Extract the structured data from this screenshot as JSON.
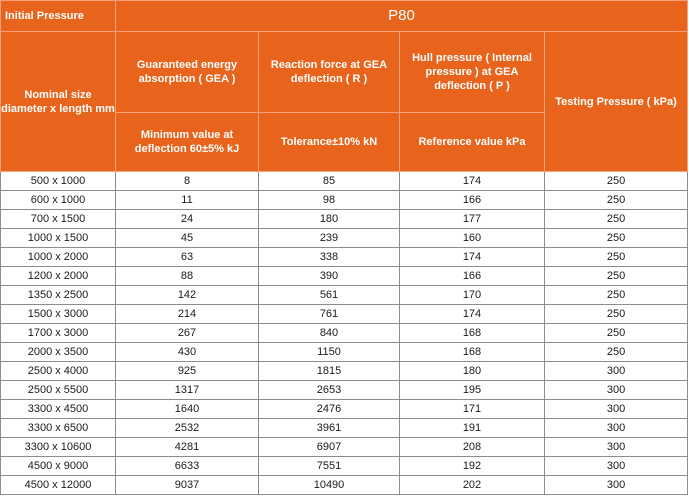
{
  "header": {
    "initial_pressure": "Initial Pressure",
    "group": "P80",
    "nominal_size": "Nominal size diameter x length mm",
    "gea": "Guaranteed energy absorption ( GEA )",
    "reaction": "Reaction force at GEA deflection ( R )",
    "hull": "Hull pressure ( Internal pressure ) at GEA deflection ( P )",
    "testing": "Testing Pressure ( kPa)",
    "gea_sub": "Minimum value at deflection 60±5% kJ",
    "reaction_sub": "Tolerance±10% kN",
    "hull_sub": "Reference value kPa"
  },
  "rows": [
    {
      "size": "500 x 1000",
      "gea": "8",
      "reaction": "85",
      "hull": "174",
      "testing": "250"
    },
    {
      "size": "600 x 1000",
      "gea": "11",
      "reaction": "98",
      "hull": "166",
      "testing": "250"
    },
    {
      "size": "700 x 1500",
      "gea": "24",
      "reaction": "180",
      "hull": "177",
      "testing": "250"
    },
    {
      "size": "1000 x 1500",
      "gea": "45",
      "reaction": "239",
      "hull": "160",
      "testing": "250"
    },
    {
      "size": "1000 x 2000",
      "gea": "63",
      "reaction": "338",
      "hull": "174",
      "testing": "250"
    },
    {
      "size": "1200 x 2000",
      "gea": "88",
      "reaction": "390",
      "hull": "166",
      "testing": "250"
    },
    {
      "size": "1350 x 2500",
      "gea": "142",
      "reaction": "561",
      "hull": "170",
      "testing": "250"
    },
    {
      "size": "1500 x 3000",
      "gea": "214",
      "reaction": "761",
      "hull": "174",
      "testing": "250"
    },
    {
      "size": "1700 x 3000",
      "gea": "267",
      "reaction": "840",
      "hull": "168",
      "testing": "250"
    },
    {
      "size": "2000 x 3500",
      "gea": "430",
      "reaction": "1150",
      "hull": "168",
      "testing": "250"
    },
    {
      "size": "2500 x 4000",
      "gea": "925",
      "reaction": "1815",
      "hull": "180",
      "testing": "300"
    },
    {
      "size": "2500 x 5500",
      "gea": "1317",
      "reaction": "2653",
      "hull": "195",
      "testing": "300"
    },
    {
      "size": "3300 x 4500",
      "gea": "1640",
      "reaction": "2476",
      "hull": "171",
      "testing": "300"
    },
    {
      "size": "3300 x 6500",
      "gea": "2532",
      "reaction": "3961",
      "hull": "191",
      "testing": "300"
    },
    {
      "size": "3300 x 10600",
      "gea": "4281",
      "reaction": "6907",
      "hull": "208",
      "testing": "300"
    },
    {
      "size": "4500 x 9000",
      "gea": "6633",
      "reaction": "7551",
      "hull": "192",
      "testing": "300"
    },
    {
      "size": "4500 x 12000",
      "gea": "9037",
      "reaction": "10490",
      "hull": "202",
      "testing": "300"
    }
  ],
  "colors": {
    "header_bg": "#e8641c",
    "header_text": "#ffffff",
    "cell_text": "#1a1a1a",
    "grid": "#8c8c8c"
  }
}
